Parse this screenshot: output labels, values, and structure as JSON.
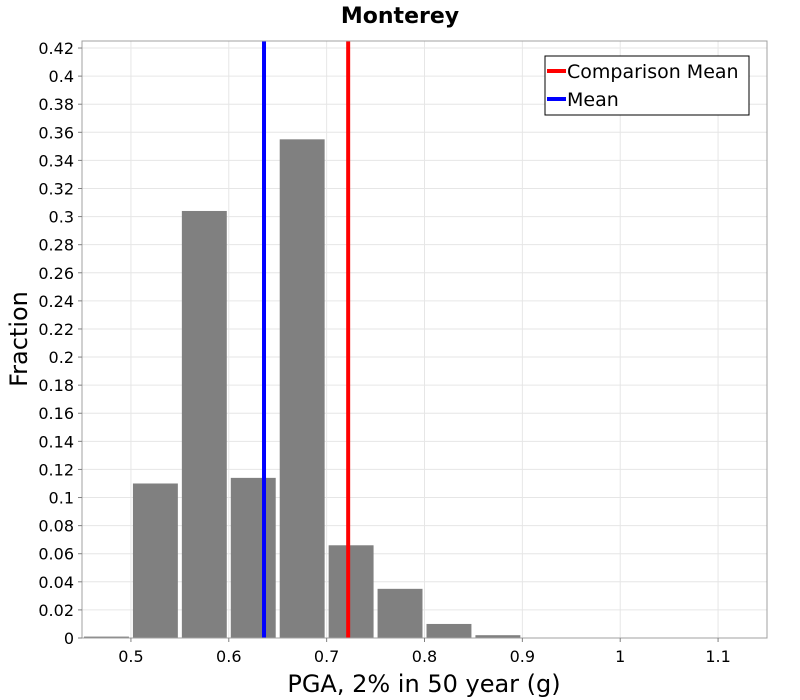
{
  "chart_data": {
    "type": "bar",
    "title": "Monterey",
    "xlabel": "PGA, 2% in 50 year (g)",
    "ylabel": "Fraction",
    "xlim": [
      0.45,
      1.15
    ],
    "ylim": [
      0,
      0.425
    ],
    "bin_width": 0.05,
    "bars": [
      {
        "x": 0.475,
        "value": 0.001
      },
      {
        "x": 0.525,
        "value": 0.11
      },
      {
        "x": 0.575,
        "value": 0.304
      },
      {
        "x": 0.625,
        "value": 0.114
      },
      {
        "x": 0.675,
        "value": 0.355
      },
      {
        "x": 0.725,
        "value": 0.066
      },
      {
        "x": 0.775,
        "value": 0.035
      },
      {
        "x": 0.825,
        "value": 0.01
      },
      {
        "x": 0.875,
        "value": 0.002
      }
    ],
    "x_ticks": [
      0.5,
      0.6,
      0.7,
      0.8,
      0.9,
      1.0,
      1.1
    ],
    "x_tick_labels": [
      "0.5",
      "0.6",
      "0.7",
      "0.8",
      "0.9",
      "1",
      "1.1"
    ],
    "y_ticks": [
      0,
      0.02,
      0.04,
      0.06,
      0.08,
      0.1,
      0.12,
      0.14,
      0.16,
      0.18,
      0.2,
      0.22,
      0.24,
      0.26,
      0.28,
      0.3,
      0.32,
      0.34,
      0.36,
      0.38,
      0.4,
      0.42
    ],
    "y_tick_labels": [
      "0",
      "0.02",
      "0.04",
      "0.06",
      "0.08",
      "0.1",
      "0.12",
      "0.14",
      "0.16",
      "0.18",
      "0.2",
      "0.22",
      "0.24",
      "0.26",
      "0.28",
      "0.3",
      "0.32",
      "0.34",
      "0.36",
      "0.38",
      "0.4",
      "0.42"
    ],
    "vlines": [
      {
        "name": "Comparison Mean",
        "x": 0.722,
        "color": "#ff0000"
      },
      {
        "name": "Mean",
        "x": 0.636,
        "color": "#0000ff"
      }
    ],
    "bar_color": "#808080",
    "grid": true,
    "legend_position": "top-right"
  }
}
